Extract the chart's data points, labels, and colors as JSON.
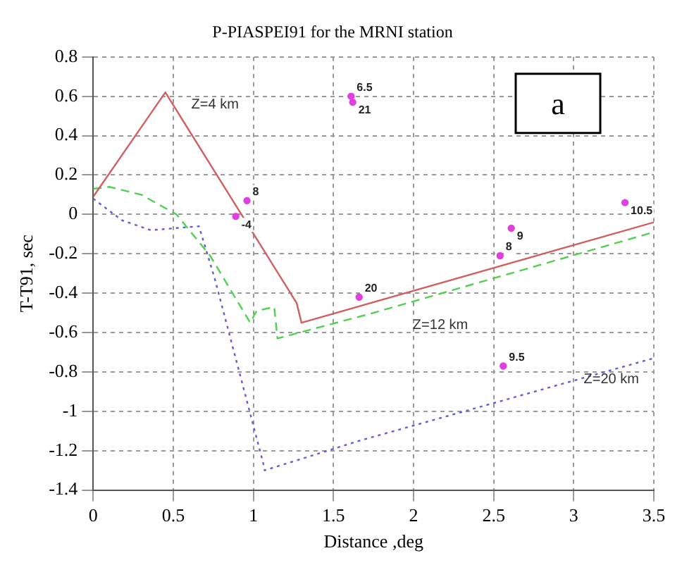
{
  "chart_data": {
    "type": "line",
    "title": "P-PIASPEI91 for the MRNI station",
    "xlabel": "Distance ,deg",
    "ylabel": "T-T91, sec",
    "xlim": [
      0,
      3.5
    ],
    "xticks": [
      0,
      0.5,
      1,
      1.5,
      2,
      2.5,
      3,
      3.5
    ],
    "ylim": [
      -1.4,
      0.8
    ],
    "yticks": [
      -1.4,
      -1.2,
      -1,
      -0.8,
      -0.6,
      -0.4,
      -0.2,
      0,
      0.2,
      0.4,
      0.6,
      0.8
    ],
    "grid": true,
    "marker": "none",
    "series": [
      {
        "color": "#d06060",
        "line_style": "solid",
        "x": [
          0,
          0.45,
          1.27,
          1.3,
          3.5
        ],
        "values": [
          0.09,
          0.62,
          -0.45,
          -0.55,
          -0.04
        ]
      },
      {
        "color": "#50d050",
        "line_style": "dashed",
        "x": [
          0,
          0.1,
          0.3,
          0.52,
          0.73,
          0.98,
          1.02,
          1.13,
          1.15,
          1.75,
          3.5
        ],
        "values": [
          0.13,
          0.14,
          0.1,
          0,
          -0.21,
          -0.55,
          -0.49,
          -0.47,
          -0.63,
          -0.5,
          -0.09
        ]
      },
      {
        "color": "#6060d0",
        "line_style": "dotted",
        "x": [
          0,
          0.18,
          0.36,
          0.66,
          0.76,
          1.06,
          1.07,
          1.66,
          3.5
        ],
        "values": [
          0.08,
          -0.03,
          -0.08,
          -0.06,
          -0.33,
          -1.26,
          -1.3,
          -1.15,
          -0.73
        ]
      },
      {
        "type": "scatter",
        "color": "#e040e0",
        "marker": "circle",
        "x": [
          1.61,
          1.62,
          0.96,
          0.89,
          1.66,
          2.61,
          2.54,
          3.32,
          2.56
        ],
        "values": [
          0.6,
          0.57,
          0.07,
          -0.01,
          -0.42,
          -0.07,
          -0.21,
          0.06,
          -0.77
        ]
      }
    ],
    "annotations": [
      "Z=4 km",
      "Z=12 km",
      "Z=20 km",
      "a",
      {
        "text": "6.5",
        "x": 1.61,
        "y": 0.6
      },
      {
        "text": "21",
        "x": 1.62,
        "y": 0.57
      },
      {
        "text": "8",
        "x": 0.96,
        "y": 0.07
      },
      {
        "text": "-4",
        "x": 0.89,
        "y": -0.01
      },
      {
        "text": "20",
        "x": 1.66,
        "y": -0.42
      },
      {
        "text": "9",
        "x": 2.61,
        "y": -0.07
      },
      {
        "text": "8",
        "x": 2.54,
        "y": -0.21
      },
      {
        "text": "10.5",
        "x": 3.32,
        "y": 0.06
      },
      {
        "text": "9.5",
        "x": 2.56,
        "y": -0.77
      }
    ]
  }
}
